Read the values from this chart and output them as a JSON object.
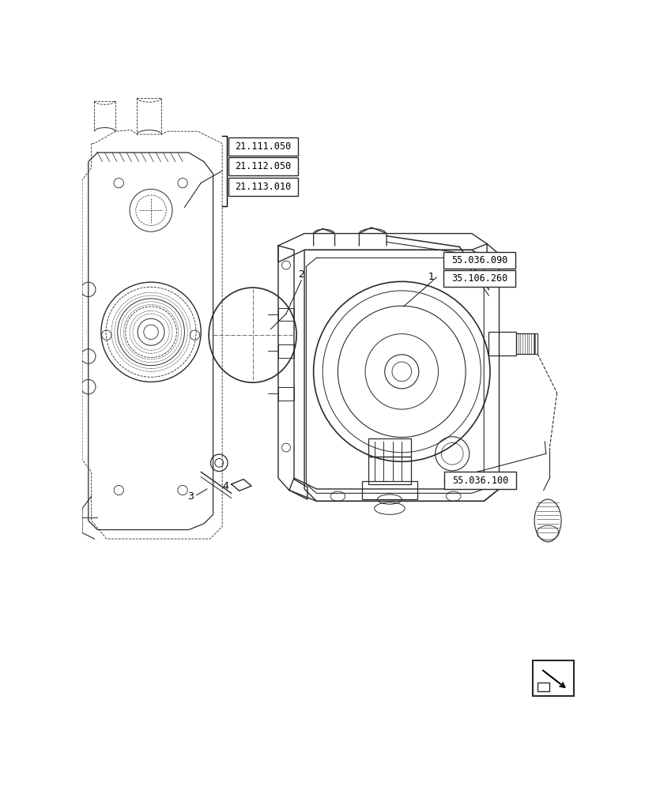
{
  "background_color": "#ffffff",
  "figsize": [
    8.16,
    10.0
  ],
  "dpi": 100,
  "labels": {
    "box1": "21.111.050",
    "box2": "21.112.050",
    "box3": "21.113.010",
    "box4": "55.036.090",
    "box5": "35.106.260",
    "box6": "55.036.100"
  },
  "line_color": "#2a2a2a",
  "lw": 0.85
}
